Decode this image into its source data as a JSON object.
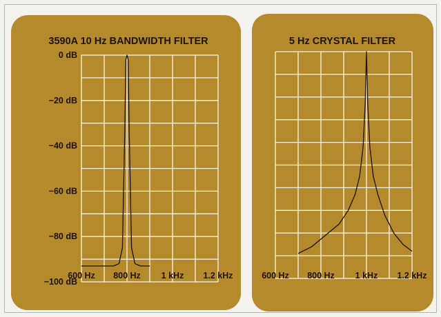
{
  "chart_data": [
    {
      "type": "line",
      "title": "3590A 10 Hz BANDWIDTH FILTER",
      "x_tick_labels": [
        "600 Hz",
        "800 Hz",
        "1 kHz",
        "1.2 kHz"
      ],
      "y_tick_labels": [
        "0 dB",
        "−20 dB",
        "−40 dB",
        "−60 dB",
        "−80 dB",
        "−100 dB"
      ],
      "xlim": [
        600,
        1200
      ],
      "ylim": [
        -100,
        0
      ],
      "grid": true,
      "x": [
        600,
        650,
        700,
        740,
        765,
        780,
        790,
        795,
        800,
        805,
        810,
        820,
        835,
        860,
        900
      ],
      "y": [
        -93,
        -93,
        -93,
        -93,
        -92,
        -85,
        -35,
        -2,
        0,
        -2,
        -35,
        -85,
        -92,
        -93,
        -93
      ]
    },
    {
      "type": "line",
      "title": "5 Hz CRYSTAL FILTER",
      "x_tick_labels": [
        "600 Hz",
        "800 Hz",
        "1 kHz",
        "1.2 kHz"
      ],
      "xlim": [
        600,
        1200
      ],
      "ylim": [
        -100,
        0
      ],
      "grid": true,
      "x": [
        700,
        760,
        820,
        880,
        920,
        950,
        970,
        985,
        995,
        1000,
        1005,
        1015,
        1030,
        1050,
        1080,
        1120,
        1160,
        1200
      ],
      "y": [
        -89,
        -86,
        -81,
        -76,
        -70,
        -63,
        -55,
        -42,
        -22,
        0,
        -22,
        -42,
        -55,
        -63,
        -72,
        -80,
        -85,
        -88
      ]
    }
  ]
}
